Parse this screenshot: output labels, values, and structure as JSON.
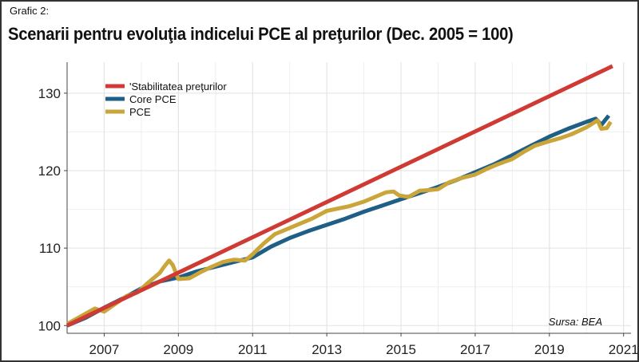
{
  "header": {
    "kicker": "Grafic 2:",
    "title": "Scenarii pentru evoluţia indicelui PCE al preţurilor (Dec. 2005 = 100)"
  },
  "source": "Sursa: BEA",
  "chart_data": {
    "type": "line",
    "title": "Scenarii pentru evoluţia indicelui PCE al preţurilor (Dec. 2005 = 100)",
    "xlabel": "",
    "ylabel": "",
    "xlim": [
      2006.0,
      2021.2
    ],
    "ylim": [
      99,
      134
    ],
    "x_ticks": [
      2007,
      2009,
      2011,
      2013,
      2015,
      2017,
      2019,
      2021
    ],
    "y_ticks": [
      100,
      110,
      120,
      130
    ],
    "grid": true,
    "legend_position": "top-left",
    "series": [
      {
        "name": "'Stabilitatea preţurilor",
        "color": "#d03a34",
        "x": [
          2006.0,
          2020.7
        ],
        "y": [
          100.0,
          133.5
        ]
      },
      {
        "name": "Core PCE",
        "color": "#1f5f86",
        "x": [
          2006.0,
          2006.5,
          2007.0,
          2007.5,
          2008.0,
          2008.5,
          2009.0,
          2009.5,
          2010.0,
          2010.5,
          2011.0,
          2011.5,
          2012.0,
          2012.5,
          2013.0,
          2013.5,
          2014.0,
          2014.5,
          2015.0,
          2015.5,
          2016.0,
          2016.5,
          2017.0,
          2017.5,
          2018.0,
          2018.5,
          2019.0,
          2019.5,
          2020.0,
          2020.25,
          2020.4,
          2020.6
        ],
        "y": [
          100.0,
          101.0,
          102.3,
          103.5,
          104.8,
          105.7,
          106.2,
          107.0,
          107.6,
          108.2,
          108.8,
          110.2,
          111.3,
          112.2,
          113.0,
          113.8,
          114.7,
          115.5,
          116.3,
          117.1,
          117.9,
          118.8,
          119.8,
          120.8,
          122.0,
          123.2,
          124.4,
          125.4,
          126.3,
          126.7,
          125.9,
          127.1
        ]
      },
      {
        "name": "PCE",
        "color": "#c9a53a",
        "x": [
          2006.0,
          2006.3,
          2006.6,
          2006.75,
          2007.0,
          2007.3,
          2007.6,
          2007.9,
          2008.2,
          2008.5,
          2008.6,
          2008.75,
          2008.85,
          2009.0,
          2009.3,
          2009.6,
          2009.9,
          2010.2,
          2010.5,
          2010.8,
          2011.0,
          2011.3,
          2011.6,
          2012.0,
          2012.3,
          2012.6,
          2013.0,
          2013.3,
          2013.6,
          2014.0,
          2014.3,
          2014.6,
          2014.8,
          2014.95,
          2015.2,
          2015.5,
          2015.8,
          2016.0,
          2016.3,
          2016.6,
          2017.0,
          2017.3,
          2017.6,
          2018.0,
          2018.3,
          2018.6,
          2019.0,
          2019.3,
          2019.6,
          2020.0,
          2020.2,
          2020.3,
          2020.4,
          2020.55,
          2020.65
        ],
        "y": [
          100.2,
          101.0,
          101.8,
          102.2,
          101.8,
          102.8,
          103.8,
          104.3,
          105.6,
          106.8,
          107.5,
          108.4,
          107.8,
          106.0,
          106.1,
          106.9,
          107.6,
          108.2,
          108.5,
          108.4,
          109.2,
          110.6,
          111.8,
          112.6,
          113.2,
          113.8,
          114.8,
          115.1,
          115.4,
          116.0,
          116.6,
          117.2,
          117.3,
          116.8,
          116.6,
          117.4,
          117.5,
          117.6,
          118.5,
          119.0,
          119.5,
          120.2,
          120.8,
          121.5,
          122.4,
          123.2,
          123.8,
          124.2,
          124.7,
          125.6,
          126.2,
          126.5,
          125.4,
          125.5,
          126.3
        ]
      }
    ]
  }
}
